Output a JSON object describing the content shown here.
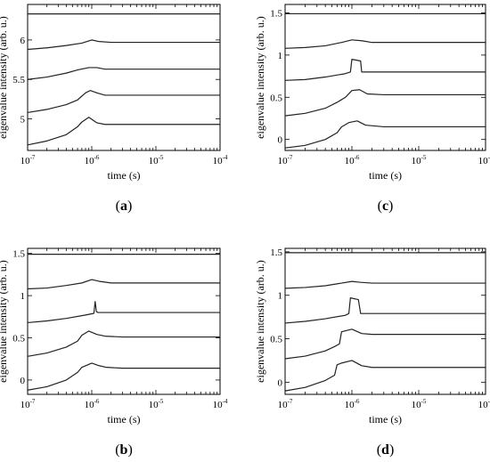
{
  "chart_data": [
    {
      "type": "line",
      "panel_label": "a",
      "xlabel": "time (s)",
      "ylabel": "eigenvalue intensity (arb. u.)",
      "x_scale": "log",
      "xlim": [
        1e-07,
        0.0001
      ],
      "x_ticks": [
        1e-07,
        1e-06,
        1e-05,
        0.0001
      ],
      "x_tick_labels": [
        {
          "base": "10",
          "exp": "-7"
        },
        {
          "base": "10",
          "exp": "-6"
        },
        {
          "base": "10",
          "exp": "-5"
        },
        {
          "base": "10",
          "exp": "-4"
        }
      ],
      "ylim": [
        4.6,
        6.45
      ],
      "y_ticks": [
        5,
        5.5,
        6
      ],
      "y_tick_labels": [
        "5",
        "5.5",
        "6"
      ],
      "series": [
        {
          "x": [
            1e-07,
            0.0001
          ],
          "y": [
            6.33,
            6.33
          ]
        },
        {
          "x": [
            1e-07,
            2e-07,
            4e-07,
            7e-07,
            1e-06,
            1.3e-06,
            2e-06,
            1e-05,
            0.0001
          ],
          "y": [
            5.88,
            5.9,
            5.93,
            5.96,
            6.0,
            5.98,
            5.97,
            5.97,
            5.97
          ]
        },
        {
          "x": [
            1e-07,
            2e-07,
            4e-07,
            6e-07,
            9e-07,
            1.2e-06,
            1.6e-06,
            3e-06,
            1e-05,
            0.0001
          ],
          "y": [
            5.5,
            5.53,
            5.58,
            5.62,
            5.65,
            5.65,
            5.63,
            5.63,
            5.63,
            5.63
          ]
        },
        {
          "x": [
            1e-07,
            2e-07,
            4e-07,
            6e-07,
            8e-07,
            9.5e-07,
            1.2e-06,
            1.6e-06,
            3e-06,
            1e-05,
            0.0001
          ],
          "y": [
            5.08,
            5.12,
            5.18,
            5.24,
            5.33,
            5.36,
            5.33,
            5.3,
            5.3,
            5.3,
            5.3
          ]
        },
        {
          "x": [
            1e-07,
            2e-07,
            4e-07,
            6e-07,
            7e-07,
            9e-07,
            1.2e-06,
            1.6e-06,
            3e-06,
            1e-05,
            0.0001
          ],
          "y": [
            4.67,
            4.72,
            4.8,
            4.9,
            4.96,
            5.02,
            4.95,
            4.93,
            4.93,
            4.93,
            4.93
          ]
        }
      ]
    },
    {
      "type": "line",
      "panel_label": "c",
      "xlabel": "time (s)",
      "ylabel": "eigenvalue intensity (arb. u.)",
      "x_scale": "log",
      "xlim": [
        1e-07,
        0.0001
      ],
      "x_ticks": [
        1e-07,
        1e-06,
        1e-05,
        0.0001
      ],
      "x_tick_labels": [
        {
          "base": "10",
          "exp": "-7"
        },
        {
          "base": "10",
          "exp": "-6"
        },
        {
          "base": "10",
          "exp": "-5"
        },
        {
          "base": "10",
          "exp": "-4"
        }
      ],
      "ylim": [
        -0.13,
        1.6
      ],
      "y_ticks": [
        0,
        0.5,
        1,
        1.5
      ],
      "y_tick_labels": [
        "0",
        "0.5",
        "1",
        "1.5"
      ],
      "series": [
        {
          "x": [
            1e-07,
            0.0001
          ],
          "y": [
            1.49,
            1.49
          ]
        },
        {
          "x": [
            1e-07,
            2e-07,
            4e-07,
            7e-07,
            1e-06,
            1.4e-06,
            2e-06,
            1e-05,
            0.0001
          ],
          "y": [
            1.08,
            1.09,
            1.11,
            1.15,
            1.18,
            1.17,
            1.15,
            1.15,
            1.15
          ]
        },
        {
          "x": [
            1e-07,
            2e-07,
            4e-07,
            8e-07,
            9.5e-07,
            1e-06,
            1.35e-06,
            1.4e-06,
            2e-06,
            1e-05,
            0.0001
          ],
          "y": [
            0.7,
            0.71,
            0.74,
            0.78,
            0.8,
            0.95,
            0.93,
            0.8,
            0.8,
            0.8,
            0.8
          ]
        },
        {
          "x": [
            1e-07,
            2e-07,
            4e-07,
            6e-07,
            8e-07,
            1e-06,
            1.3e-06,
            1.7e-06,
            3e-06,
            1e-05,
            0.0001
          ],
          "y": [
            0.28,
            0.31,
            0.37,
            0.44,
            0.5,
            0.58,
            0.59,
            0.54,
            0.53,
            0.53,
            0.53
          ]
        },
        {
          "x": [
            1e-07,
            2e-07,
            4e-07,
            6e-07,
            7e-07,
            9e-07,
            1.2e-06,
            1.6e-06,
            3e-06,
            1e-05,
            0.0001
          ],
          "y": [
            -0.1,
            -0.07,
            0.0,
            0.08,
            0.15,
            0.2,
            0.22,
            0.17,
            0.15,
            0.15,
            0.15
          ]
        }
      ]
    },
    {
      "type": "line",
      "panel_label": "b",
      "xlabel": "time (s)",
      "ylabel": "eigenvalue intensity (arb. u.)",
      "x_scale": "log",
      "xlim": [
        1e-07,
        0.0001
      ],
      "x_ticks": [
        1e-07,
        1e-06,
        1e-05,
        0.0001
      ],
      "x_tick_labels": [
        {
          "base": "10",
          "exp": "-7"
        },
        {
          "base": "10",
          "exp": "-6"
        },
        {
          "base": "10",
          "exp": "-5"
        },
        {
          "base": "10",
          "exp": "-4"
        }
      ],
      "ylim": [
        -0.17,
        1.56
      ],
      "y_ticks": [
        0,
        0.5,
        1,
        1.5
      ],
      "y_tick_labels": [
        "0",
        "0.5",
        "1",
        "1.5"
      ],
      "series": [
        {
          "x": [
            1e-07,
            0.0001
          ],
          "y": [
            1.49,
            1.49
          ]
        },
        {
          "x": [
            1e-07,
            2e-07,
            4e-07,
            7e-07,
            1e-06,
            1.3e-06,
            2e-06,
            1e-05,
            0.0001
          ],
          "y": [
            1.08,
            1.09,
            1.12,
            1.15,
            1.19,
            1.17,
            1.15,
            1.15,
            1.15
          ]
        },
        {
          "x": [
            1e-07,
            2e-07,
            4e-07,
            8e-07,
            1.08e-06,
            1.13e-06,
            1.18e-06,
            1.25e-06,
            2e-06,
            1e-05,
            0.0001
          ],
          "y": [
            0.68,
            0.7,
            0.73,
            0.77,
            0.79,
            0.93,
            0.81,
            0.8,
            0.8,
            0.8,
            0.8
          ]
        },
        {
          "x": [
            1e-07,
            2e-07,
            4e-07,
            6e-07,
            7e-07,
            9e-07,
            1.2e-06,
            1.6e-06,
            3e-06,
            1e-05,
            0.0001
          ],
          "y": [
            0.28,
            0.32,
            0.39,
            0.46,
            0.53,
            0.58,
            0.54,
            0.52,
            0.51,
            0.51,
            0.51
          ]
        },
        {
          "x": [
            1e-07,
            2e-07,
            4e-07,
            6e-07,
            7e-07,
            1e-06,
            1.3e-06,
            1.7e-06,
            3e-06,
            1e-05,
            0.0001
          ],
          "y": [
            -0.12,
            -0.08,
            0.0,
            0.09,
            0.15,
            0.2,
            0.17,
            0.15,
            0.14,
            0.14,
            0.14
          ]
        }
      ]
    },
    {
      "type": "line",
      "panel_label": "d",
      "xlabel": "time (s)",
      "ylabel": "eigenvalue intensity (arb. u.)",
      "x_scale": "log",
      "xlim": [
        1e-07,
        0.0001
      ],
      "x_ticks": [
        1e-07,
        1e-06,
        1e-05,
        0.0001
      ],
      "x_tick_labels": [
        {
          "base": "10",
          "exp": "-7"
        },
        {
          "base": "10",
          "exp": "-6"
        },
        {
          "base": "10",
          "exp": "-5"
        },
        {
          "base": "10",
          "exp": "-4"
        }
      ],
      "ylim": [
        -0.14,
        1.54
      ],
      "y_ticks": [
        0,
        0.5,
        1,
        1.5
      ],
      "y_tick_labels": [
        "0",
        "0.5",
        "1",
        "1.5"
      ],
      "series": [
        {
          "x": [
            1e-07,
            0.0001
          ],
          "y": [
            1.49,
            1.49
          ]
        },
        {
          "x": [
            1e-07,
            2e-07,
            4e-07,
            7e-07,
            1e-06,
            1.3e-06,
            2e-06,
            1e-05,
            0.0001
          ],
          "y": [
            1.08,
            1.09,
            1.11,
            1.14,
            1.16,
            1.15,
            1.14,
            1.14,
            1.14
          ]
        },
        {
          "x": [
            1e-07,
            2e-07,
            4e-07,
            8e-07,
            9e-07,
            9.5e-07,
            1.25e-06,
            1.35e-06,
            2e-06,
            1e-05,
            0.0001
          ],
          "y": [
            0.68,
            0.7,
            0.73,
            0.77,
            0.79,
            0.97,
            0.95,
            0.79,
            0.79,
            0.79,
            0.79
          ]
        },
        {
          "x": [
            1e-07,
            2e-07,
            4e-07,
            5.5e-07,
            6.5e-07,
            7e-07,
            1e-06,
            1.4e-06,
            2e-06,
            1e-05,
            0.0001
          ],
          "y": [
            0.27,
            0.3,
            0.36,
            0.41,
            0.44,
            0.58,
            0.61,
            0.56,
            0.55,
            0.55,
            0.55
          ]
        },
        {
          "x": [
            1e-07,
            2e-07,
            4e-07,
            5.5e-07,
            6e-07,
            7e-07,
            1e-06,
            1.4e-06,
            2e-06,
            1e-05,
            0.0001
          ],
          "y": [
            -0.1,
            -0.06,
            0.02,
            0.08,
            0.2,
            0.22,
            0.25,
            0.19,
            0.17,
            0.17,
            0.17
          ]
        }
      ]
    }
  ]
}
